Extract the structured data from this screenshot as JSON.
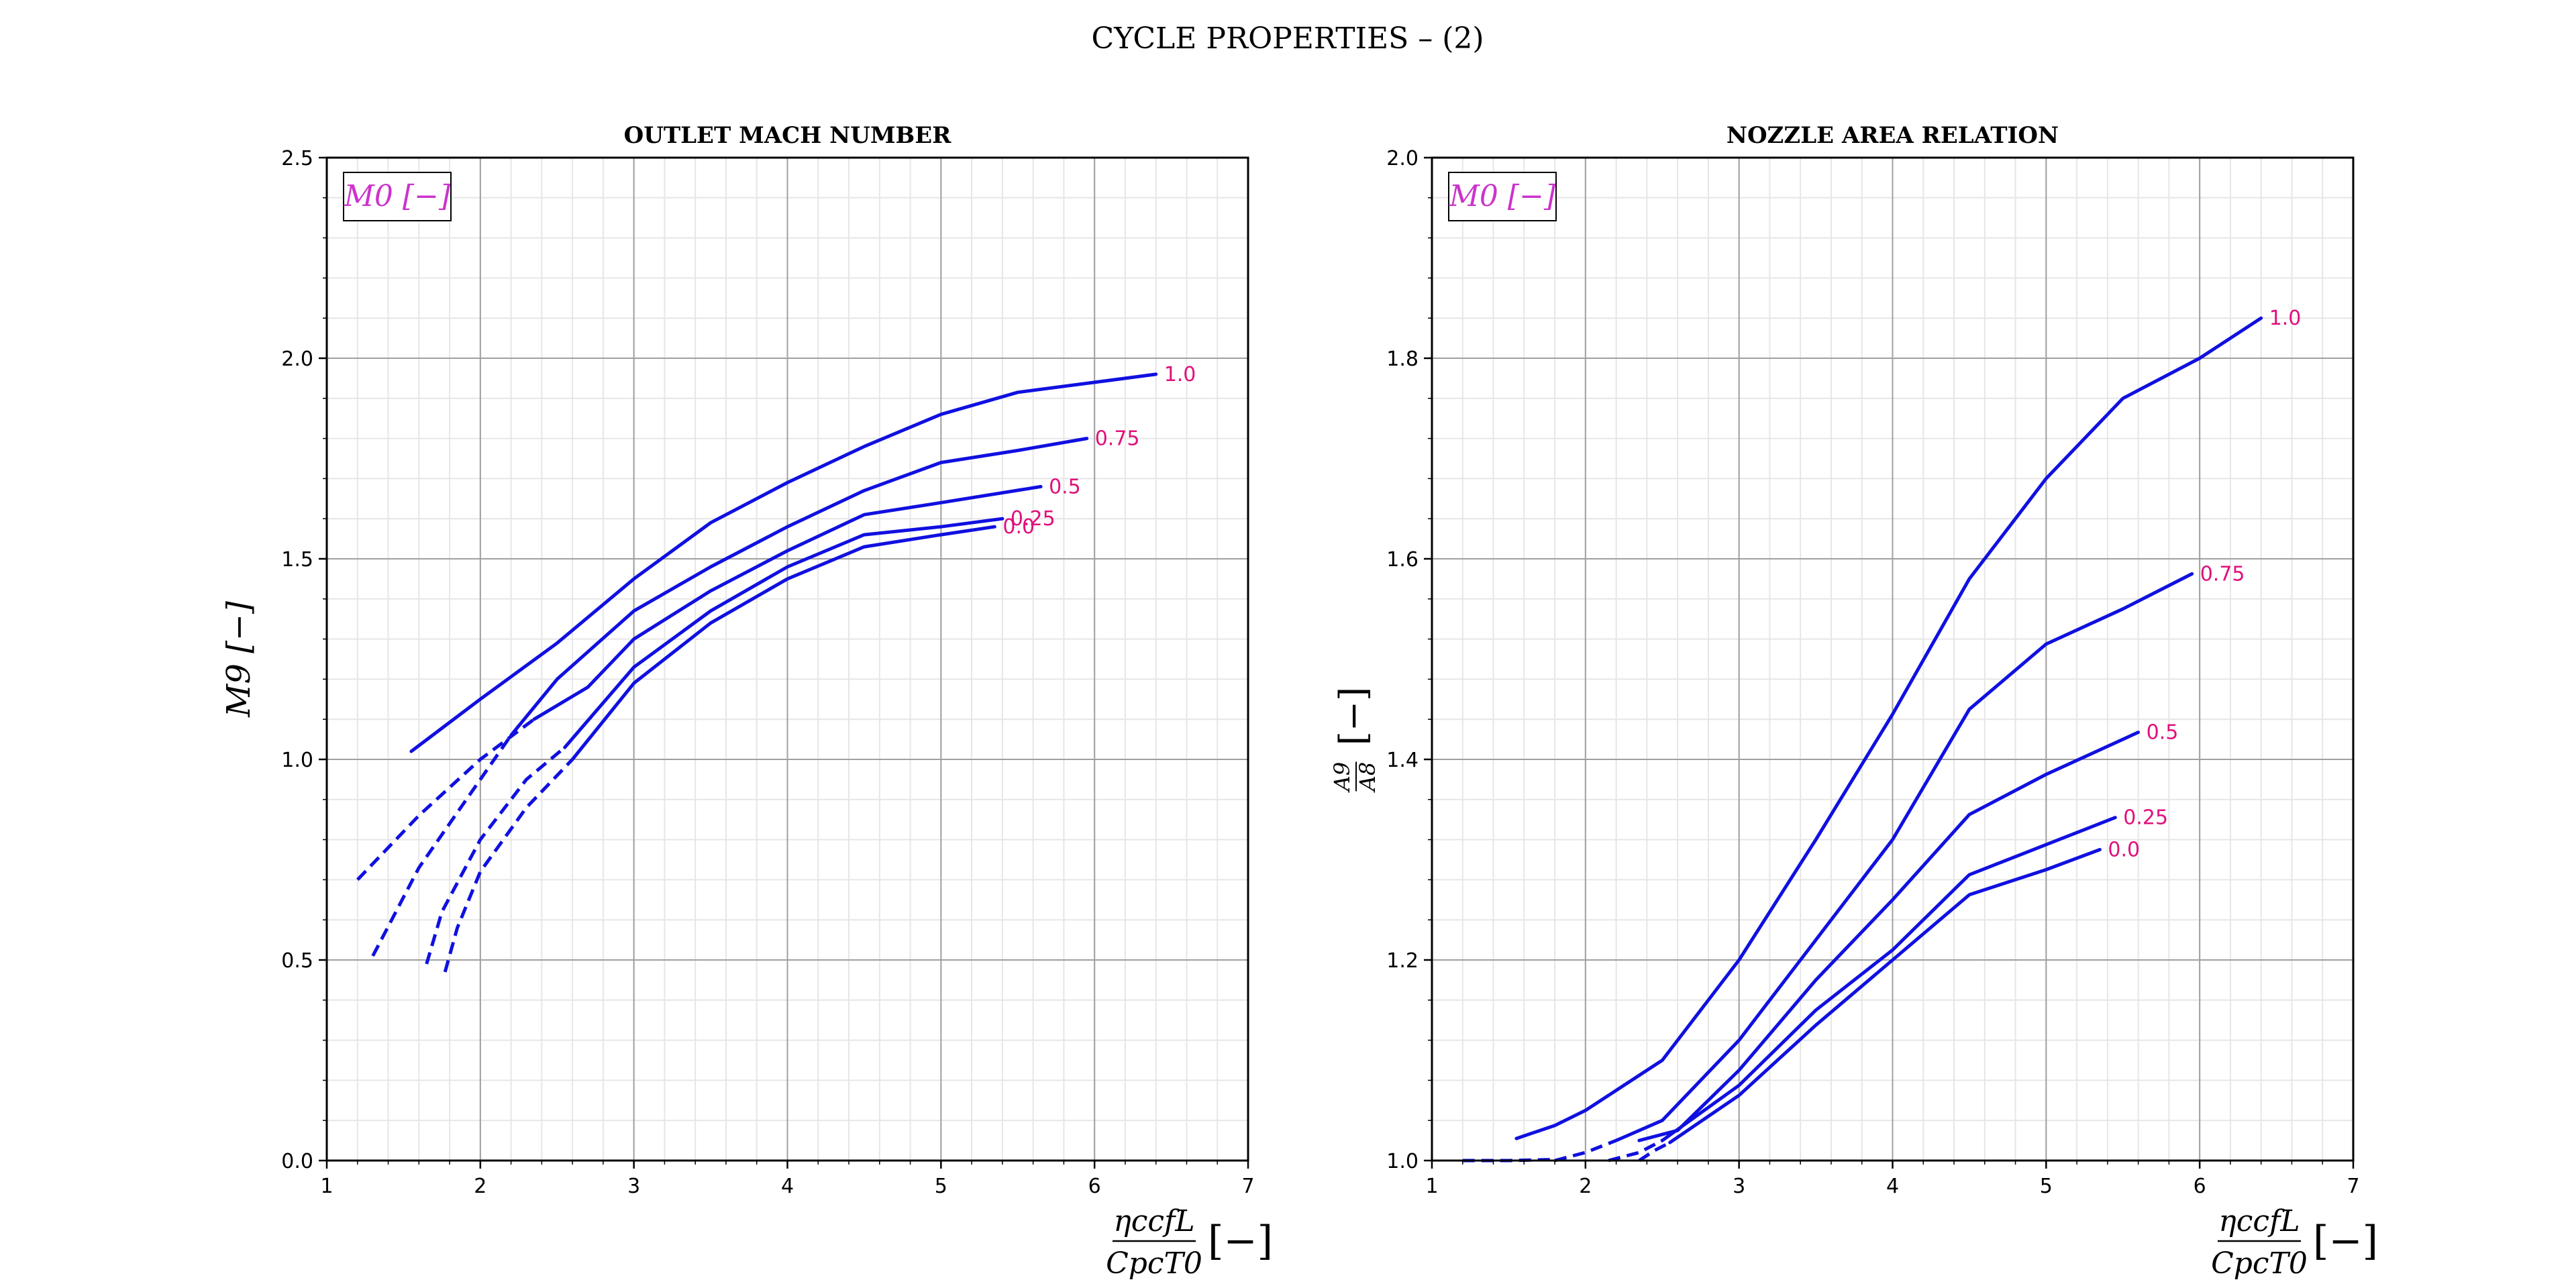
{
  "figure": {
    "suptitle": "CYCLE PROPERTIES  – (2)"
  },
  "colors": {
    "curve": "#1010e0",
    "curve_label": "#e0107a",
    "legend": "#cc33cc"
  },
  "chart_data": [
    {
      "type": "line",
      "title": "OUTLET MACH NUMBER",
      "xlabel": "ηcc f L / Cpc T0 [−]",
      "ylabel": "M9 [−]",
      "legend_text": "M0 [−]",
      "legend_position": "top-left",
      "grid": true,
      "xlim": [
        1,
        7
      ],
      "ylim": [
        0,
        2.5
      ],
      "x_ticks": [
        1,
        2,
        3,
        4,
        5,
        6,
        7
      ],
      "y_ticks": [
        0.0,
        0.5,
        1.0,
        1.5,
        2.0,
        2.5
      ],
      "x_tick_labels": [
        "1",
        "2",
        "3",
        "4",
        "5",
        "6",
        "7"
      ],
      "y_tick_labels": [
        "0.0",
        "0.5",
        "1.0",
        "1.5",
        "2.0",
        "2.5"
      ],
      "series": [
        {
          "name": "1.0",
          "dashed": [],
          "solid": [
            [
              1.55,
              1.02
            ],
            [
              2.0,
              1.15
            ],
            [
              2.5,
              1.29
            ],
            [
              3.0,
              1.45
            ],
            [
              3.5,
              1.59
            ],
            [
              4.0,
              1.69
            ],
            [
              4.5,
              1.78
            ],
            [
              5.0,
              1.86
            ],
            [
              5.5,
              1.915
            ],
            [
              6.0,
              1.94
            ],
            [
              6.4,
              1.96
            ]
          ]
        },
        {
          "name": "0.75",
          "dashed": [
            [
              1.3,
              0.51
            ],
            [
              1.6,
              0.73
            ],
            [
              2.0,
              0.95
            ],
            [
              2.2,
              1.06
            ]
          ],
          "solid": [
            [
              2.2,
              1.06
            ],
            [
              2.5,
              1.2
            ],
            [
              3.0,
              1.37
            ],
            [
              3.5,
              1.48
            ],
            [
              4.0,
              1.58
            ],
            [
              4.5,
              1.67
            ],
            [
              5.0,
              1.74
            ],
            [
              5.5,
              1.77
            ],
            [
              5.95,
              1.8
            ]
          ]
        },
        {
          "name": "0.5",
          "dashed": [
            [
              1.2,
              0.7
            ],
            [
              1.6,
              0.86
            ],
            [
              2.0,
              1.0
            ],
            [
              2.35,
              1.1
            ]
          ],
          "solid": [
            [
              2.35,
              1.1
            ],
            [
              2.7,
              1.18
            ],
            [
              3.0,
              1.3
            ],
            [
              3.5,
              1.42
            ],
            [
              4.0,
              1.52
            ],
            [
              4.5,
              1.61
            ],
            [
              5.0,
              1.64
            ],
            [
              5.65,
              1.68
            ]
          ]
        },
        {
          "name": "0.25",
          "dashed": [
            [
              1.65,
              0.49
            ],
            [
              1.75,
              0.62
            ],
            [
              2.0,
              0.8
            ],
            [
              2.3,
              0.95
            ],
            [
              2.55,
              1.03
            ]
          ],
          "solid": [
            [
              2.55,
              1.03
            ],
            [
              3.0,
              1.23
            ],
            [
              3.5,
              1.37
            ],
            [
              4.0,
              1.48
            ],
            [
              4.5,
              1.56
            ],
            [
              5.0,
              1.58
            ],
            [
              5.4,
              1.6
            ]
          ]
        },
        {
          "name": "0.0",
          "dashed": [
            [
              1.77,
              0.47
            ],
            [
              1.85,
              0.58
            ],
            [
              2.0,
              0.72
            ],
            [
              2.3,
              0.88
            ],
            [
              2.6,
              1.0
            ]
          ],
          "solid": [
            [
              2.6,
              1.0
            ],
            [
              3.0,
              1.19
            ],
            [
              3.5,
              1.34
            ],
            [
              4.0,
              1.45
            ],
            [
              4.5,
              1.53
            ],
            [
              5.0,
              1.56
            ],
            [
              5.35,
              1.58
            ]
          ]
        }
      ]
    },
    {
      "type": "line",
      "title": "NOZZLE AREA RELATION",
      "xlabel": "ηcc f L / Cpc T0 [−]",
      "ylabel": "A9/A8 [−]",
      "legend_text": "M0 [−]",
      "legend_position": "top-left",
      "grid": true,
      "xlim": [
        1,
        7
      ],
      "ylim": [
        1.0,
        2.0
      ],
      "x_ticks": [
        1,
        2,
        3,
        4,
        5,
        6,
        7
      ],
      "y_ticks": [
        1.0,
        1.2,
        1.4,
        1.6,
        1.8,
        2.0
      ],
      "x_tick_labels": [
        "1",
        "2",
        "3",
        "4",
        "5",
        "6",
        "7"
      ],
      "y_tick_labels": [
        "1.0",
        "1.2",
        "1.4",
        "1.6",
        "1.8",
        "2.0"
      ],
      "series": [
        {
          "name": "1.0",
          "dashed": [],
          "solid": [
            [
              1.55,
              1.022
            ],
            [
              1.8,
              1.035
            ],
            [
              2.0,
              1.05
            ],
            [
              2.5,
              1.1
            ],
            [
              3.0,
              1.2
            ],
            [
              3.5,
              1.32
            ],
            [
              4.0,
              1.445
            ],
            [
              4.5,
              1.58
            ],
            [
              5.0,
              1.68
            ],
            [
              5.5,
              1.76
            ],
            [
              6.0,
              1.8
            ],
            [
              6.4,
              1.84
            ]
          ]
        },
        {
          "name": "0.75",
          "dashed": [
            [
              1.8,
              1.0
            ],
            [
              2.0,
              1.008
            ],
            [
              2.2,
              1.02
            ]
          ],
          "solid": [
            [
              2.2,
              1.02
            ],
            [
              2.5,
              1.04
            ],
            [
              3.0,
              1.12
            ],
            [
              3.5,
              1.22
            ],
            [
              4.0,
              1.32
            ],
            [
              4.5,
              1.45
            ],
            [
              5.0,
              1.515
            ],
            [
              5.5,
              1.55
            ],
            [
              5.95,
              1.585
            ]
          ]
        },
        {
          "name": "0.5",
          "dashed": [
            [
              1.2,
              1.0
            ],
            [
              1.5,
              1.0
            ],
            [
              1.8,
              1.001
            ]
          ],
          "solid": [
            [
              2.35,
              1.02
            ],
            [
              2.6,
              1.03
            ],
            [
              3.0,
              1.09
            ],
            [
              3.5,
              1.18
            ],
            [
              4.0,
              1.26
            ],
            [
              4.5,
              1.345
            ],
            [
              5.0,
              1.385
            ],
            [
              5.6,
              1.427
            ]
          ]
        },
        {
          "name": "0.25",
          "dashed": [
            [
              2.15,
              1.0
            ],
            [
              2.35,
              1.008
            ],
            [
              2.5,
              1.02
            ]
          ],
          "solid": [
            [
              2.5,
              1.02
            ],
            [
              3.0,
              1.075
            ],
            [
              3.5,
              1.15
            ],
            [
              4.0,
              1.21
            ],
            [
              4.5,
              1.285
            ],
            [
              5.0,
              1.315
            ],
            [
              5.45,
              1.342
            ]
          ]
        },
        {
          "name": "0.0",
          "dashed": [
            [
              2.35,
              1.0
            ],
            [
              2.45,
              1.01
            ],
            [
              2.55,
              1.018
            ]
          ],
          "solid": [
            [
              2.55,
              1.018
            ],
            [
              3.0,
              1.065
            ],
            [
              3.5,
              1.135
            ],
            [
              4.0,
              1.2
            ],
            [
              4.5,
              1.265
            ],
            [
              5.0,
              1.29
            ],
            [
              5.35,
              1.31
            ]
          ]
        }
      ]
    }
  ]
}
